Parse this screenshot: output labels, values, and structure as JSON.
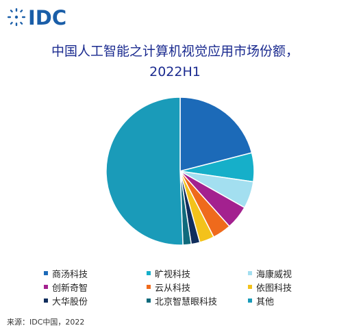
{
  "logo": {
    "text": "IDC",
    "color": "#1a5ea8"
  },
  "chart_data": {
    "type": "pie",
    "title_lines": [
      "中国人工智能之计算机视觉应用市场份额，",
      "2022H1"
    ],
    "legend_position": "bottom",
    "start_angle_deg": 0,
    "direction": "clockwise",
    "slices": [
      {
        "label": "商汤科技",
        "value": 21.0,
        "color": "#1c6ab8"
      },
      {
        "label": "旷视科技",
        "value": 6.3,
        "color": "#16afc9"
      },
      {
        "label": "海康威视",
        "value": 5.9,
        "color": "#a3dff0"
      },
      {
        "label": "创新奇智",
        "value": 5.2,
        "color": "#a3218f"
      },
      {
        "label": "云从科技",
        "value": 4.1,
        "color": "#ef6a1c"
      },
      {
        "label": "依图科技",
        "value": 3.2,
        "color": "#f3c21b"
      },
      {
        "label": "大华股份",
        "value": 1.9,
        "color": "#102d5c"
      },
      {
        "label": "北京智慧眼科技",
        "value": 1.8,
        "color": "#0f6a7c"
      },
      {
        "label": "其他",
        "value": 50.6,
        "color": "#1a9bb9"
      }
    ]
  },
  "source": "来源：IDC中国，2022"
}
